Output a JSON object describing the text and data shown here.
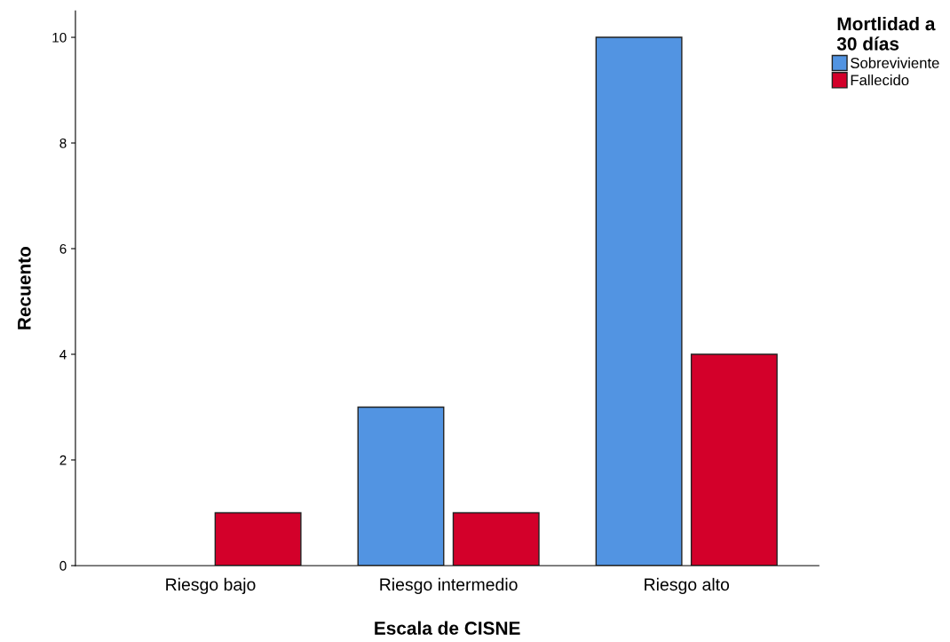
{
  "chart_data": {
    "type": "bar",
    "xlabel": "Escala de CISNE",
    "ylabel": "Recuento",
    "legend_title": "Mortlidad a\n30 días",
    "categories": [
      "Riesgo bajo",
      "Riesgo intermedio",
      "Riesgo alto"
    ],
    "series": [
      {
        "name": "Sobreviviente",
        "color": "#5294e2",
        "values": [
          0,
          3,
          10
        ]
      },
      {
        "name": "Fallecido",
        "color": "#d3002a",
        "values": [
          1,
          1,
          4
        ]
      }
    ],
    "ylim": [
      0,
      10.5
    ],
    "yticks": [
      0,
      2,
      4,
      6,
      8,
      10
    ],
    "grid": false,
    "legend": "top right"
  }
}
